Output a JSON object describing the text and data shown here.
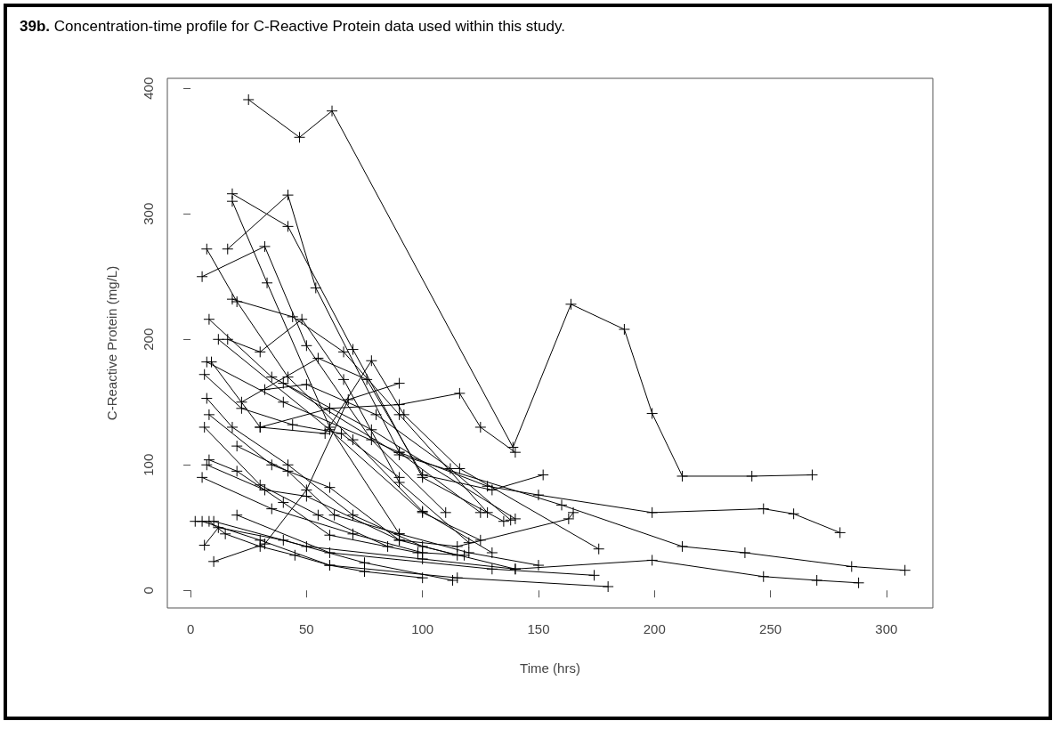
{
  "chart_data": {
    "type": "line",
    "title": "39b. Concentration-time profile for C-Reactive Protein data used within this study.",
    "xlabel": "Time (hrs)",
    "ylabel": "C-Reactive Protein (mg/L)",
    "xlim": [
      -10,
      320
    ],
    "ylim": [
      -14,
      408
    ],
    "xticks": [
      0,
      50,
      100,
      150,
      200,
      250,
      300
    ],
    "yticks": [
      0,
      100,
      200,
      300,
      400
    ],
    "marker": "cross",
    "line_style": "solid",
    "series": [
      {
        "color": "#000000",
        "x": [
          25,
          47,
          61,
          139,
          164,
          187,
          199,
          212,
          242,
          268
        ],
        "values": [
          391,
          361,
          382,
          114,
          228,
          208,
          141,
          91,
          91,
          92
        ]
      },
      {
        "color": "#000000",
        "x": [
          5,
          32,
          50,
          78,
          110
        ],
        "values": [
          250,
          274,
          195,
          120,
          62
        ]
      },
      {
        "color": "#000000",
        "x": [
          7,
          20,
          42,
          70,
          100,
          130
        ],
        "values": [
          272,
          230,
          170,
          120,
          63,
          30
        ]
      },
      {
        "color": "#000000",
        "x": [
          16,
          42,
          54,
          90,
          125
        ],
        "values": [
          272,
          315,
          241,
          110,
          62
        ]
      },
      {
        "color": "#000000",
        "x": [
          18,
          42,
          70,
          100,
          135
        ],
        "values": [
          316,
          290,
          192,
          90,
          55
        ]
      },
      {
        "color": "#000000",
        "x": [
          18,
          33,
          60,
          90
        ],
        "values": [
          310,
          245,
          130,
          45
        ]
      },
      {
        "color": "#000000",
        "x": [
          18,
          44,
          66,
          90,
          128
        ],
        "values": [
          232,
          218,
          190,
          140,
          62
        ]
      },
      {
        "color": "#000000",
        "x": [
          8,
          35,
          78,
          140
        ],
        "values": [
          216,
          170,
          128,
          57
        ]
      },
      {
        "color": "#000000",
        "x": [
          16,
          30,
          48,
          66,
          90,
          120
        ],
        "values": [
          200,
          190,
          216,
          168,
          86,
          38
        ]
      },
      {
        "color": "#000000",
        "x": [
          7,
          40,
          90,
          128,
          150,
          199,
          247,
          260,
          280
        ],
        "values": [
          182,
          150,
          110,
          83,
          76,
          62,
          65,
          61,
          46
        ]
      },
      {
        "color": "#000000",
        "x": [
          9,
          30,
          58,
          78,
          92,
          116,
          176
        ],
        "values": [
          182,
          130,
          125,
          183,
          140,
          97,
          33
        ]
      },
      {
        "color": "#000000",
        "x": [
          6,
          22,
          44,
          65,
          90
        ],
        "values": [
          172,
          145,
          132,
          125,
          90
        ]
      },
      {
        "color": "#000000",
        "x": [
          7,
          18,
          42,
          70,
          100,
          140
        ],
        "values": [
          153,
          130,
          100,
          60,
          35,
          17
        ]
      },
      {
        "color": "#000000",
        "x": [
          8,
          35,
          60,
          90,
          115
        ],
        "values": [
          140,
          100,
          82,
          40,
          28
        ]
      },
      {
        "color": "#000000",
        "x": [
          6,
          30,
          55,
          85
        ],
        "values": [
          130,
          84,
          60,
          35
        ]
      },
      {
        "color": "#000000",
        "x": [
          8,
          20,
          40,
          60,
          98
        ],
        "values": [
          104,
          95,
          70,
          44,
          30
        ]
      },
      {
        "color": "#000000",
        "x": [
          7,
          32,
          50,
          90,
          115,
          163,
          165
        ],
        "values": [
          100,
          80,
          75,
          40,
          35,
          57,
          62
        ]
      },
      {
        "color": "#000000",
        "x": [
          5,
          35,
          70,
          100,
          118
        ],
        "values": [
          90,
          65,
          45,
          30,
          28
        ]
      },
      {
        "color": "#000000",
        "x": [
          5,
          30,
          60,
          115,
          180
        ],
        "values": [
          55,
          40,
          20,
          10,
          3
        ]
      },
      {
        "color": "#000000",
        "x": [
          10,
          50,
          100,
          140,
          199,
          247,
          270,
          288
        ],
        "values": [
          55,
          35,
          25,
          17,
          24,
          11,
          8,
          6
        ]
      },
      {
        "color": "#000000",
        "x": [
          20,
          60,
          130,
          174
        ],
        "values": [
          60,
          30,
          17,
          12
        ]
      },
      {
        "color": "#000000",
        "x": [
          2,
          8,
          15,
          30,
          45,
          60,
          75,
          100
        ],
        "values": [
          55,
          55,
          45,
          35,
          28,
          20,
          15,
          10
        ]
      },
      {
        "color": "#000000",
        "x": [
          6,
          12,
          40,
          75,
          113
        ],
        "values": [
          36,
          50,
          40,
          22,
          8
        ]
      },
      {
        "color": "#000000",
        "x": [
          10,
          32,
          50,
          68,
          90
        ],
        "values": [
          23,
          37,
          80,
          152,
          165
        ]
      },
      {
        "color": "#000000",
        "x": [
          40,
          90,
          160,
          212,
          239,
          285,
          308
        ],
        "values": [
          165,
          108,
          68,
          35,
          30,
          19,
          16
        ]
      },
      {
        "color": "#000000",
        "x": [
          30,
          60,
          90,
          116,
          125,
          140
        ],
        "values": [
          130,
          145,
          148,
          157,
          130,
          110
        ]
      },
      {
        "color": "#000000",
        "x": [
          22,
          55,
          76,
          100,
          130,
          152
        ],
        "values": [
          150,
          185,
          168,
          92,
          80,
          92
        ]
      },
      {
        "color": "#000000",
        "x": [
          32,
          50,
          80,
          112,
          138
        ],
        "values": [
          160,
          164,
          140,
          97,
          56
        ]
      },
      {
        "color": "#000000",
        "x": [
          20,
          42,
          62,
          90,
          120,
          150
        ],
        "values": [
          115,
          95,
          60,
          45,
          30,
          20
        ]
      },
      {
        "color": "#000000",
        "x": [
          12,
          60,
          100,
          125
        ],
        "values": [
          200,
          128,
          62,
          40
        ]
      }
    ]
  }
}
